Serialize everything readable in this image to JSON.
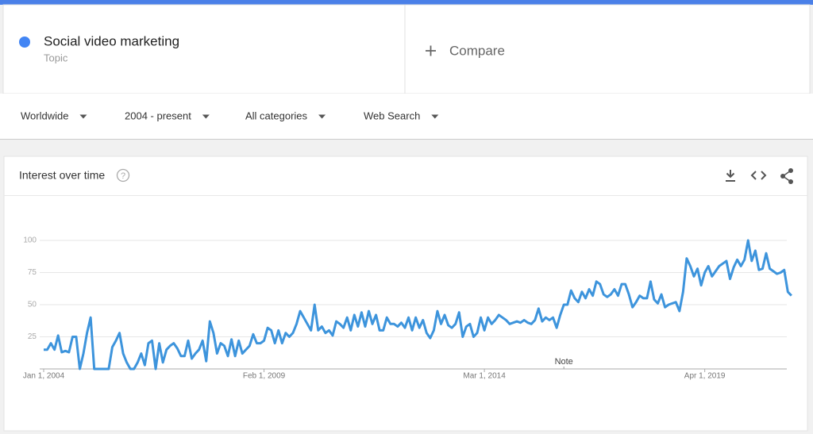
{
  "search": {
    "term": "Social video marketing",
    "kind": "Topic",
    "compare": "Compare"
  },
  "filters": [
    "Worldwide",
    "2004 - present",
    "All categories",
    "Web Search"
  ],
  "panel_title": "Interest over time",
  "chart_data": {
    "type": "line",
    "color": "#3d94dc",
    "x": [
      "2004-01",
      "2004-02",
      "2004-03",
      "2004-04",
      "2004-05",
      "2004-06",
      "2004-07",
      "2004-08",
      "2004-09",
      "2004-10",
      "2004-11",
      "2004-12",
      "2005-01",
      "2005-02",
      "2005-03",
      "2005-04",
      "2005-05",
      "2005-06",
      "2005-07",
      "2005-08",
      "2005-09",
      "2005-10",
      "2005-11",
      "2005-12",
      "2006-01",
      "2006-02",
      "2006-03",
      "2006-04",
      "2006-05",
      "2006-06",
      "2006-07",
      "2006-08",
      "2006-09",
      "2006-10",
      "2006-11",
      "2006-12",
      "2007-01",
      "2007-02",
      "2007-03",
      "2007-04",
      "2007-05",
      "2007-06",
      "2007-07",
      "2007-08",
      "2007-09",
      "2007-10",
      "2007-11",
      "2007-12",
      "2008-01",
      "2008-02",
      "2008-03",
      "2008-04",
      "2008-05",
      "2008-06",
      "2008-07",
      "2008-08",
      "2008-09",
      "2008-10",
      "2008-11",
      "2008-12",
      "2009-01",
      "2009-02",
      "2009-03",
      "2009-04",
      "2009-05",
      "2009-06",
      "2009-07",
      "2009-08",
      "2009-09",
      "2009-10",
      "2009-11",
      "2009-12",
      "2010-01",
      "2010-02",
      "2010-03",
      "2010-04",
      "2010-05",
      "2010-06",
      "2010-07",
      "2010-08",
      "2010-09",
      "2010-10",
      "2010-11",
      "2010-12",
      "2011-01",
      "2011-02",
      "2011-03",
      "2011-04",
      "2011-05",
      "2011-06",
      "2011-07",
      "2011-08",
      "2011-09",
      "2011-10",
      "2011-11",
      "2011-12",
      "2012-01",
      "2012-02",
      "2012-03",
      "2012-04",
      "2012-05",
      "2012-06",
      "2012-07",
      "2012-08",
      "2012-09",
      "2012-10",
      "2012-11",
      "2012-12",
      "2013-01",
      "2013-02",
      "2013-03",
      "2013-04",
      "2013-05",
      "2013-06",
      "2013-07",
      "2013-08",
      "2013-09",
      "2013-10",
      "2013-11",
      "2013-12",
      "2014-01",
      "2014-02",
      "2014-03",
      "2014-04",
      "2014-05",
      "2014-06",
      "2014-07",
      "2014-08",
      "2014-09",
      "2014-10",
      "2014-11",
      "2014-12",
      "2015-01",
      "2015-02",
      "2015-03",
      "2015-04",
      "2015-05",
      "2015-06",
      "2015-07",
      "2015-08",
      "2015-09",
      "2015-10",
      "2015-11",
      "2015-12",
      "2016-01",
      "2016-02",
      "2016-03",
      "2016-04",
      "2016-05",
      "2016-06",
      "2016-07",
      "2016-08",
      "2016-09",
      "2016-10",
      "2016-11",
      "2016-12",
      "2017-01",
      "2017-02",
      "2017-03",
      "2017-04",
      "2017-05",
      "2017-06",
      "2017-07",
      "2017-08",
      "2017-09",
      "2017-10",
      "2017-11",
      "2017-12",
      "2018-01",
      "2018-02",
      "2018-03",
      "2018-04",
      "2018-05",
      "2018-06",
      "2018-07",
      "2018-08",
      "2018-09",
      "2018-10",
      "2018-11",
      "2018-12",
      "2019-01",
      "2019-02",
      "2019-03",
      "2019-04",
      "2019-05",
      "2019-06",
      "2019-07",
      "2019-08",
      "2019-09",
      "2019-10",
      "2019-11",
      "2019-12",
      "2020-01",
      "2020-02",
      "2020-03",
      "2020-04",
      "2020-05",
      "2020-06",
      "2020-07",
      "2020-08",
      "2020-09",
      "2020-10",
      "2020-11",
      "2020-12",
      "2021-01",
      "2021-02",
      "2021-03",
      "2021-04"
    ],
    "values": [
      15,
      15,
      20,
      15,
      26,
      13,
      14,
      13,
      25,
      25,
      0,
      12,
      28,
      40,
      0,
      0,
      0,
      0,
      0,
      17,
      22,
      28,
      12,
      5,
      0,
      0,
      5,
      12,
      3,
      20,
      22,
      0,
      20,
      5,
      15,
      18,
      20,
      16,
      10,
      10,
      22,
      8,
      12,
      15,
      22,
      6,
      37,
      28,
      12,
      20,
      18,
      10,
      23,
      10,
      22,
      12,
      15,
      18,
      27,
      20,
      20,
      22,
      32,
      30,
      20,
      30,
      20,
      28,
      25,
      28,
      35,
      45,
      40,
      35,
      30,
      50,
      30,
      33,
      28,
      30,
      26,
      37,
      35,
      32,
      40,
      30,
      42,
      33,
      44,
      33,
      45,
      35,
      42,
      30,
      30,
      40,
      35,
      35,
      33,
      36,
      32,
      40,
      30,
      40,
      32,
      38,
      28,
      24,
      30,
      45,
      35,
      42,
      34,
      32,
      35,
      44,
      25,
      33,
      35,
      25,
      28,
      40,
      30,
      40,
      35,
      38,
      42,
      40,
      38,
      35,
      36,
      37,
      36,
      38,
      36,
      35,
      38,
      47,
      37,
      40,
      38,
      40,
      32,
      42,
      50,
      50,
      61,
      55,
      52,
      60,
      55,
      62,
      57,
      68,
      66,
      58,
      56,
      58,
      62,
      57,
      66,
      66,
      58,
      48,
      52,
      57,
      55,
      55,
      68,
      54,
      51,
      58,
      48,
      50,
      51,
      52,
      45,
      60,
      86,
      80,
      72,
      78,
      65,
      75,
      80,
      72,
      76,
      80,
      82,
      84,
      70,
      79,
      85,
      80,
      85,
      100,
      84,
      92,
      77,
      78,
      90,
      78,
      76,
      74,
      75,
      77,
      60,
      57
    ],
    "ylim": [
      0,
      100
    ],
    "yticks": [
      25,
      50,
      75,
      100
    ],
    "grid": true,
    "xticks": [
      {
        "value": "2004-01",
        "label": "Jan 1, 2004"
      },
      {
        "value": "2009-02",
        "label": "Feb 1, 2009"
      },
      {
        "value": "2014-03",
        "label": "Mar 1, 2014"
      },
      {
        "value": "2019-04",
        "label": "Apr 1, 2019"
      }
    ],
    "annotations": [
      {
        "text": "Note",
        "x": "2016-01"
      }
    ]
  }
}
